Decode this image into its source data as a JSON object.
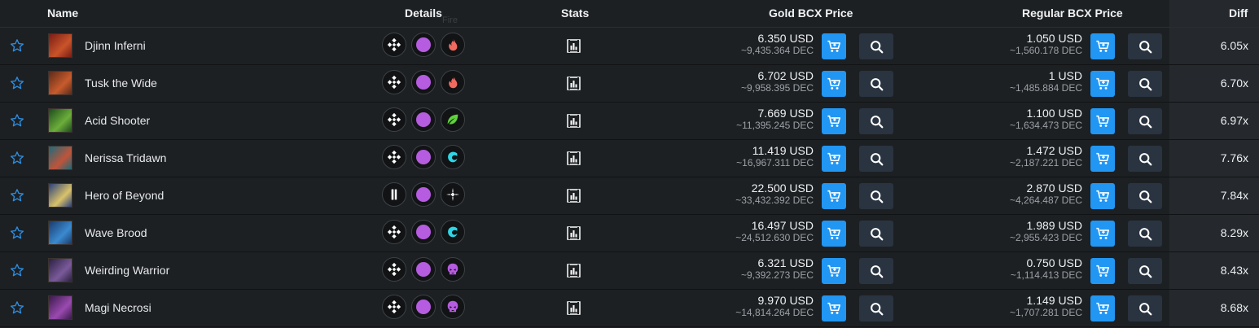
{
  "header": {
    "name": "Name",
    "details": "Details",
    "fire_tooltip": "Fire",
    "stats": "Stats",
    "gold_price": "Gold BCX Price",
    "regular_price": "Regular BCX Price",
    "diff": "Diff"
  },
  "colors": {
    "background": "#1d2023",
    "accent_blue": "#2196f3",
    "search_button": "#2a3440",
    "mana_purple": "#b65ce0"
  },
  "rows": [
    {
      "name": "Djinn Inferni",
      "thumb_colors": [
        "#7a1c14",
        "#c9542a"
      ],
      "edition_icon": "diamond-icon",
      "rarity_color": "#b65ce0",
      "element": "fire",
      "element_icon": "fire-element-icon",
      "element_color": "#f06a5f",
      "gold_usd": "6.350 USD",
      "gold_dec": "~9,435.364 DEC",
      "reg_usd": "1.050 USD",
      "reg_dec": "~1,560.178 DEC",
      "diff": "6.05x"
    },
    {
      "name": "Tusk the Wide",
      "thumb_colors": [
        "#5a2a1a",
        "#c85b2c"
      ],
      "edition_icon": "diamond-icon",
      "rarity_color": "#b65ce0",
      "element": "fire",
      "element_icon": "fire-element-icon",
      "element_color": "#f06a5f",
      "gold_usd": "6.702 USD",
      "gold_dec": "~9,958.395 DEC",
      "reg_usd": "1 USD",
      "reg_dec": "~1,485.884 DEC",
      "diff": "6.70x"
    },
    {
      "name": "Acid Shooter",
      "thumb_colors": [
        "#1d4a1d",
        "#6cae3a"
      ],
      "edition_icon": "diamond-icon",
      "rarity_color": "#b65ce0",
      "element": "earth",
      "element_icon": "earth-element-icon",
      "element_color": "#5ed33a",
      "gold_usd": "7.669 USD",
      "gold_dec": "~11,395.245 DEC",
      "reg_usd": "1.100 USD",
      "reg_dec": "~1,634.473 DEC",
      "diff": "6.97x"
    },
    {
      "name": "Nerissa Tridawn",
      "thumb_colors": [
        "#1b6a7a",
        "#c0543a"
      ],
      "edition_icon": "diamond-icon",
      "rarity_color": "#b65ce0",
      "element": "water",
      "element_icon": "water-element-icon",
      "element_color": "#2ed6e6",
      "gold_usd": "11.419 USD",
      "gold_dec": "~16,967.311 DEC",
      "reg_usd": "1.472 USD",
      "reg_dec": "~2,187.221 DEC",
      "diff": "7.76x"
    },
    {
      "name": "Hero of Beyond",
      "thumb_colors": [
        "#2a3f7a",
        "#d9c26a"
      ],
      "edition_icon": "pillar-icon",
      "rarity_color": "#b65ce0",
      "element": "life",
      "element_icon": "life-element-icon",
      "element_color": "#f2f2f2",
      "gold_usd": "22.500 USD",
      "gold_dec": "~33,432.392 DEC",
      "reg_usd": "2.870 USD",
      "reg_dec": "~4,264.487 DEC",
      "diff": "7.84x"
    },
    {
      "name": "Wave Brood",
      "thumb_colors": [
        "#1a3a6a",
        "#3a8ad0"
      ],
      "edition_icon": "diamond-icon",
      "rarity_color": "#b65ce0",
      "element": "water",
      "element_icon": "water-element-icon",
      "element_color": "#2ed6e6",
      "gold_usd": "16.497 USD",
      "gold_dec": "~24,512.630 DEC",
      "reg_usd": "1.989 USD",
      "reg_dec": "~2,955.423 DEC",
      "diff": "8.29x"
    },
    {
      "name": "Weirding Warrior",
      "thumb_colors": [
        "#2a2040",
        "#7a5a9a"
      ],
      "edition_icon": "diamond-icon",
      "rarity_color": "#b65ce0",
      "element": "death",
      "element_icon": "death-element-icon",
      "element_color": "#b65ce0",
      "gold_usd": "6.321 USD",
      "gold_dec": "~9,392.273 DEC",
      "reg_usd": "0.750 USD",
      "reg_dec": "~1,114.413 DEC",
      "diff": "8.43x"
    },
    {
      "name": "Magi Necrosi",
      "thumb_colors": [
        "#3a1a4a",
        "#9a4ab0"
      ],
      "edition_icon": "diamond-icon",
      "rarity_color": "#b65ce0",
      "element": "death",
      "element_icon": "death-element-icon",
      "element_color": "#b65ce0",
      "gold_usd": "9.970 USD",
      "gold_dec": "~14,814.264 DEC",
      "reg_usd": "1.149 USD",
      "reg_dec": "~1,707.281 DEC",
      "diff": "8.68x"
    }
  ]
}
